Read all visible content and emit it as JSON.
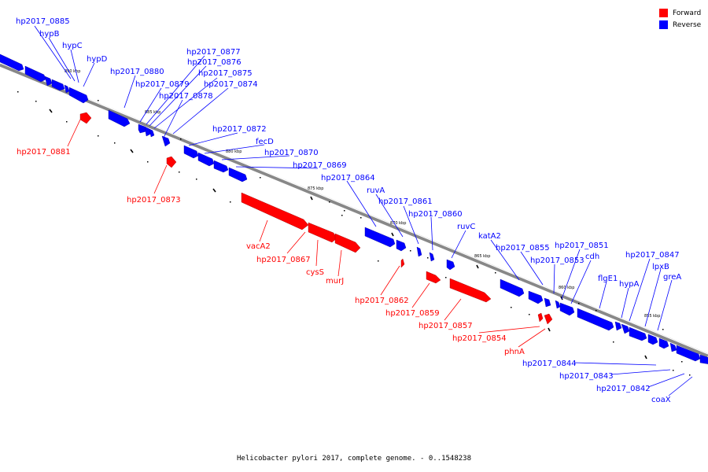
{
  "legend": [
    {
      "label": "Forward",
      "color": "#ff0000"
    },
    {
      "label": "Reverse",
      "color": "#0000ff"
    }
  ],
  "caption": "Helicobacter pylori 2017, complete genome. - 0..1548238",
  "scale_labels": [
    "890 kbp",
    "885 kbp",
    "880 kbp",
    "875 kbp",
    "870 kbp",
    "865 kbp",
    "860 kbp",
    "855 kbp"
  ],
  "genes_reverse": [
    "hp2017_0885",
    "hypB",
    "hypC",
    "hypD",
    "hp2017_0880",
    "hp2017_0879",
    "hp2017_0878",
    "hp2017_0877",
    "hp2017_0876",
    "hp2017_0875",
    "hp2017_0874",
    "hp2017_0872",
    "fecD",
    "hp2017_0870",
    "hp2017_0869",
    "hp2017_0864",
    "ruvA",
    "hp2017_0861",
    "hp2017_0860",
    "ruvC",
    "katA2",
    "hp2017_0855",
    "hp2017_0853",
    "hp2017_0851",
    "cdh",
    "flgE1",
    "hypA",
    "hp2017_0847",
    "lpxB",
    "greA",
    "hp2017_0844",
    "hp2017_0843",
    "hp2017_0842",
    "coaX"
  ],
  "genes_forward": [
    "hp2017_0881",
    "hp2017_0873",
    "vacA2",
    "hp2017_0867",
    "cysS",
    "murJ",
    "hp2017_0862",
    "hp2017_0859",
    "hp2017_0857",
    "hp2017_0854",
    "phnA"
  ]
}
